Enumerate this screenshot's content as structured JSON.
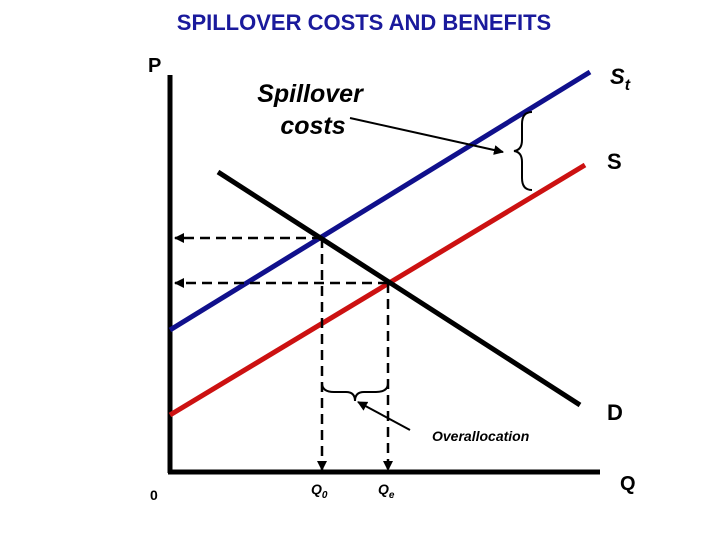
{
  "header": {
    "title": "SPILLOVER COSTS AND BENEFITS"
  },
  "axes": {
    "y_label": "P",
    "x_label": "Q",
    "origin": "0"
  },
  "curves": {
    "supply_total": {
      "main": "S",
      "sub": "t"
    },
    "supply": {
      "main": "S"
    },
    "demand": {
      "main": "D"
    }
  },
  "annotations": {
    "spillover_costs": [
      "Spillover",
      "costs"
    ],
    "overallocation": "Overallocation"
  },
  "quantities": {
    "q0": {
      "main": "Q",
      "sub": "0"
    },
    "qe": {
      "main": "Q",
      "sub": "e"
    }
  }
}
